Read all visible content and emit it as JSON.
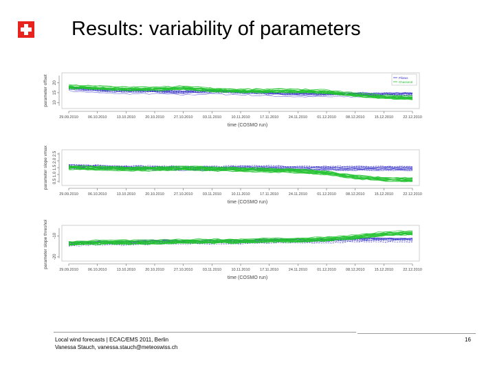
{
  "slide": {
    "title": "Results: variability of parameters",
    "footer_line1": "Local wind forecasts | ECAC/EMS 2011, Berlin",
    "footer_line2": "Vanessa Stauch, vanessa.stauch@meteoswiss.ch",
    "page_number": "16",
    "logo": "swiss-cross-logo"
  },
  "colors": {
    "green": "#22c22e",
    "blue": "#3a34c8",
    "logo_red": "#e8231d"
  },
  "chart_data": [
    {
      "type": "line",
      "title": "",
      "xlabel": "time (COSMO run)",
      "ylabel": "parameter offset",
      "x_ticks": [
        "29.09.2010",
        "06.10.2010",
        "13.10.2010",
        "20.10.2010",
        "27.10.2010",
        "03.11.2010",
        "10.11.2010",
        "17.11.2010",
        "24.11.2010",
        "01.12.2010",
        "08.12.2010",
        "15.12.2010",
        "22.12.2010"
      ],
      "y_ticks": [
        10,
        15,
        20
      ],
      "ylim": [
        7,
        25
      ],
      "legend": {
        "placement": "top-right",
        "entries": [
          "Pilatus",
          "Chasseral"
        ]
      },
      "series": [
        {
          "name": "Pilatus",
          "color": "blue",
          "values": [
            17,
            16,
            15.5,
            15.5,
            15,
            15.5,
            15,
            14.5,
            14,
            14,
            14,
            14,
            14
          ]
        },
        {
          "name": "Chasseral",
          "color": "green",
          "values": [
            18,
            17.5,
            17,
            17,
            17.5,
            16.5,
            16,
            16,
            16,
            15.5,
            14,
            13,
            12.5
          ]
        }
      ]
    },
    {
      "type": "line",
      "title": "",
      "xlabel": "time (COSMO run)",
      "ylabel": "parameter slope vmax",
      "x_ticks": [
        "29.09.2010",
        "06.10.2010",
        "13.10.2010",
        "20.10.2010",
        "27.10.2010",
        "03.11.2010",
        "10.11.2010",
        "17.11.2010",
        "24.11.2010",
        "01.12.2010",
        "08.12.2010",
        "15.12.2010",
        "22.12.2010"
      ],
      "y_ticks": [
        "0.5",
        "1.0",
        "1.5",
        "2.0",
        "2.5"
      ],
      "ylim": [
        0.2,
        2.8
      ],
      "series": [
        {
          "name": "",
          "color": "blue",
          "values": [
            1.6,
            1.55,
            1.5,
            1.5,
            1.45,
            1.45,
            1.5,
            1.5,
            1.45,
            1.45,
            1.45,
            1.45,
            1.45
          ]
        },
        {
          "name": "",
          "color": "green",
          "values": [
            1.5,
            1.45,
            1.4,
            1.4,
            1.45,
            1.4,
            1.35,
            1.3,
            1.25,
            1.1,
            0.8,
            0.65,
            0.6
          ]
        }
      ]
    },
    {
      "type": "line",
      "title": "",
      "xlabel": "time (COSMO run)",
      "ylabel": "parameter slope threshold",
      "x_ticks": [
        "29.09.2010",
        "06.10.2010",
        "13.10.2010",
        "20.10.2010",
        "27.10.2010",
        "03.11.2010",
        "10.11.2010",
        "17.11.2010",
        "24.11.2010",
        "01.12.2010",
        "08.12.2010",
        "15.12.2010",
        "22.12.2010"
      ],
      "y_ticks": [
        -20,
        -10
      ],
      "ylim": [
        -22,
        -5
      ],
      "series": [
        {
          "name": "",
          "color": "blue",
          "values": [
            -14,
            -13.5,
            -13.5,
            -13,
            -13,
            -13,
            -13,
            -12.5,
            -12.5,
            -12.5,
            -12,
            -12,
            -12
          ]
        },
        {
          "name": "",
          "color": "green",
          "values": [
            -13.5,
            -13,
            -13,
            -13,
            -12.5,
            -12.5,
            -12.5,
            -12,
            -12,
            -11.5,
            -10.5,
            -9,
            -8.5
          ]
        }
      ]
    }
  ]
}
